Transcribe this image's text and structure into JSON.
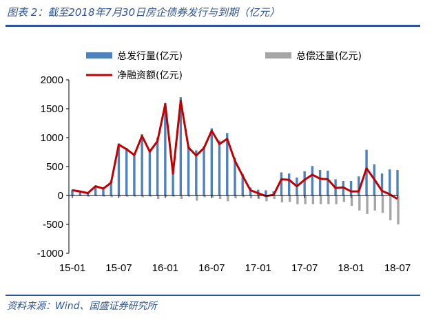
{
  "header": {
    "title": "图表 2：截至2018年7月30日房企债券发行与到期（亿元）"
  },
  "footer": {
    "source": "资料来源：Wind、国盛证券研究所"
  },
  "colors": {
    "issue": "#4f81bd",
    "repay": "#a6a6a6",
    "net": "#c00000",
    "rule": "#2f5597"
  },
  "chart_data": {
    "type": "bar",
    "title": "",
    "xlabel": "",
    "ylabel": "",
    "ylim": [
      -1000,
      2000
    ],
    "yticks": [
      2000,
      1500,
      1000,
      500,
      0,
      -500,
      -1000
    ],
    "x_tick_labels": [
      "15-01",
      "15-07",
      "16-01",
      "16-07",
      "17-01",
      "17-07",
      "18-01",
      "18-07"
    ],
    "x_tick_index": [
      0,
      6,
      12,
      18,
      24,
      30,
      36,
      42
    ],
    "legend_position": "top",
    "categories": [
      "15-01",
      "15-02",
      "15-03",
      "15-04",
      "15-05",
      "15-06",
      "15-07",
      "15-08",
      "15-09",
      "15-10",
      "15-11",
      "15-12",
      "16-01",
      "16-02",
      "16-03",
      "16-04",
      "16-05",
      "16-06",
      "16-07",
      "16-08",
      "16-09",
      "16-10",
      "16-11",
      "16-12",
      "17-01",
      "17-02",
      "17-03",
      "17-04",
      "17-05",
      "17-06",
      "17-07",
      "17-08",
      "17-09",
      "17-10",
      "17-11",
      "17-12",
      "18-01",
      "18-02",
      "18-03",
      "18-04",
      "18-05",
      "18-06",
      "18-07"
    ],
    "series": [
      {
        "name": "总发行量(亿元)",
        "kind": "bar",
        "values": [
          100,
          80,
          60,
          170,
          140,
          250,
          900,
          820,
          720,
          1060,
          780,
          1000,
          1600,
          400,
          1700,
          850,
          780,
          850,
          1160,
          950,
          1080,
          650,
          370,
          140,
          100,
          90,
          70,
          400,
          380,
          310,
          420,
          510,
          440,
          430,
          280,
          250,
          250,
          330,
          790,
          540,
          380,
          450,
          440
        ]
      },
      {
        "name": "总偿还量(亿元)",
        "kind": "bar",
        "values": [
          -10,
          -10,
          -20,
          -10,
          -20,
          -30,
          -20,
          -20,
          -20,
          -30,
          -20,
          -60,
          -20,
          -20,
          -60,
          -20,
          -90,
          -30,
          -40,
          -60,
          -100,
          -50,
          -30,
          -50,
          -60,
          -100,
          -60,
          -120,
          -110,
          -150,
          -150,
          -150,
          -150,
          -150,
          -150,
          -110,
          -180,
          -260,
          -320,
          -260,
          -300,
          -430,
          -500
        ]
      },
      {
        "name": "净融资额(亿元)",
        "kind": "line",
        "values": [
          90,
          70,
          40,
          160,
          120,
          220,
          880,
          800,
          700,
          1030,
          760,
          940,
          1580,
          380,
          1640,
          830,
          690,
          820,
          1120,
          890,
          980,
          600,
          340,
          90,
          40,
          -10,
          10,
          280,
          270,
          160,
          270,
          360,
          290,
          280,
          130,
          140,
          70,
          70,
          470,
          280,
          80,
          20,
          -60
        ]
      }
    ]
  }
}
